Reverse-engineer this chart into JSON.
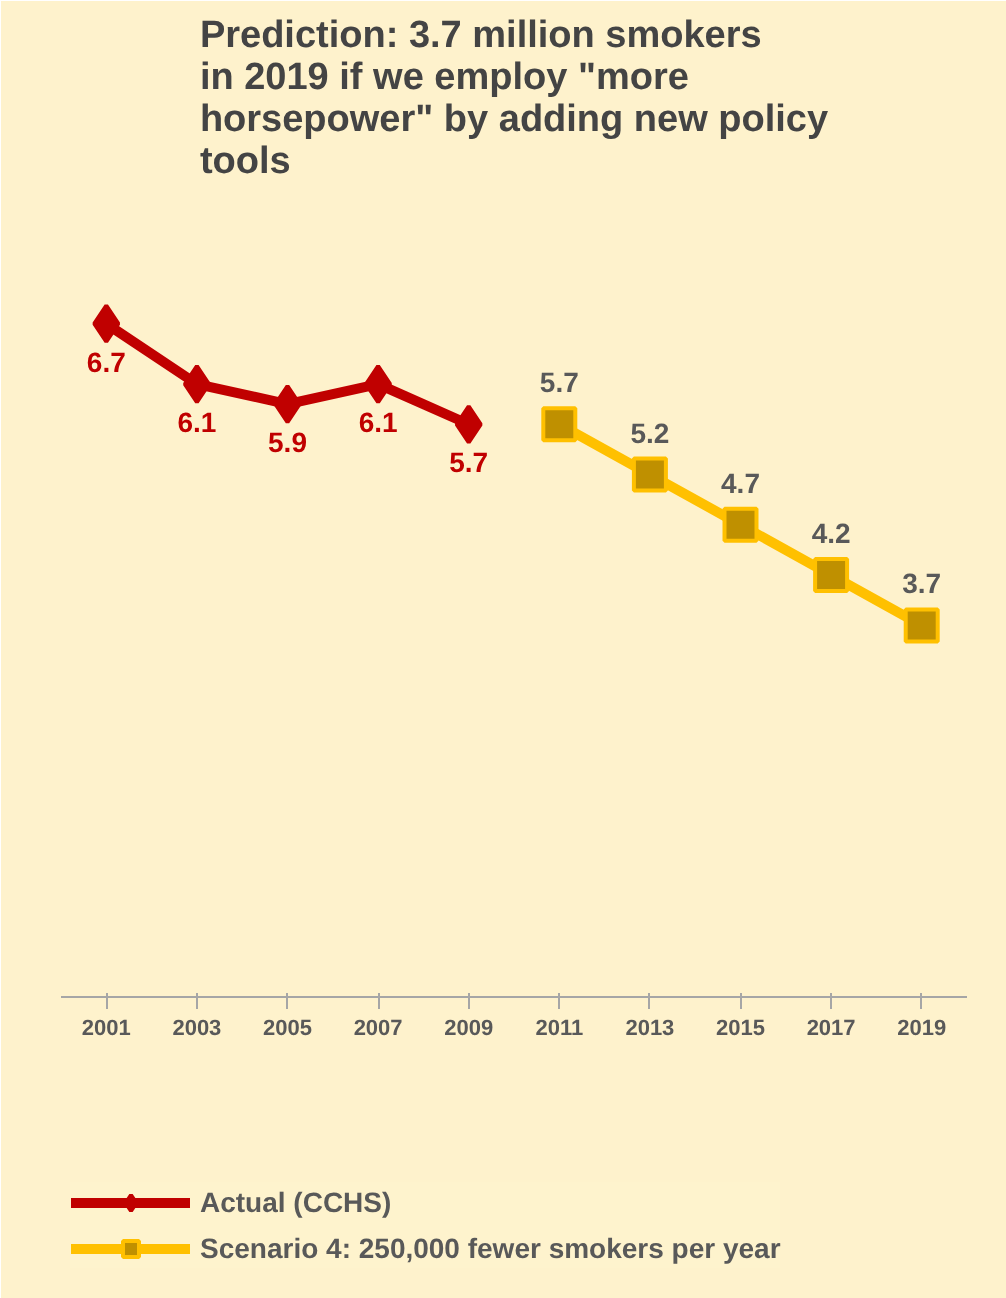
{
  "chart_data": {
    "type": "line",
    "title": "Prediction: 3.7 million smokers in 2019 if we employ \"more horsepower\" by adding new policy tools",
    "categories": [
      "2001",
      "2003",
      "2005",
      "2007",
      "2009",
      "2011",
      "2013",
      "2015",
      "2017",
      "2019"
    ],
    "series": [
      {
        "name": "Actual (CCHS)",
        "color": "#c00000",
        "marker": "diamond",
        "values": [
          6.7,
          6.1,
          5.9,
          6.1,
          5.7,
          null,
          null,
          null,
          null,
          null
        ]
      },
      {
        "name": "Scenario 4: 250,000 fewer smokers per year",
        "color": "#ffc000",
        "marker": "square",
        "values": [
          null,
          null,
          null,
          null,
          null,
          5.7,
          5.2,
          4.7,
          4.2,
          3.7
        ]
      }
    ],
    "ylim": [
      0,
      8
    ],
    "tick_labels": "x",
    "data_labels": true,
    "legend": "bottom"
  }
}
